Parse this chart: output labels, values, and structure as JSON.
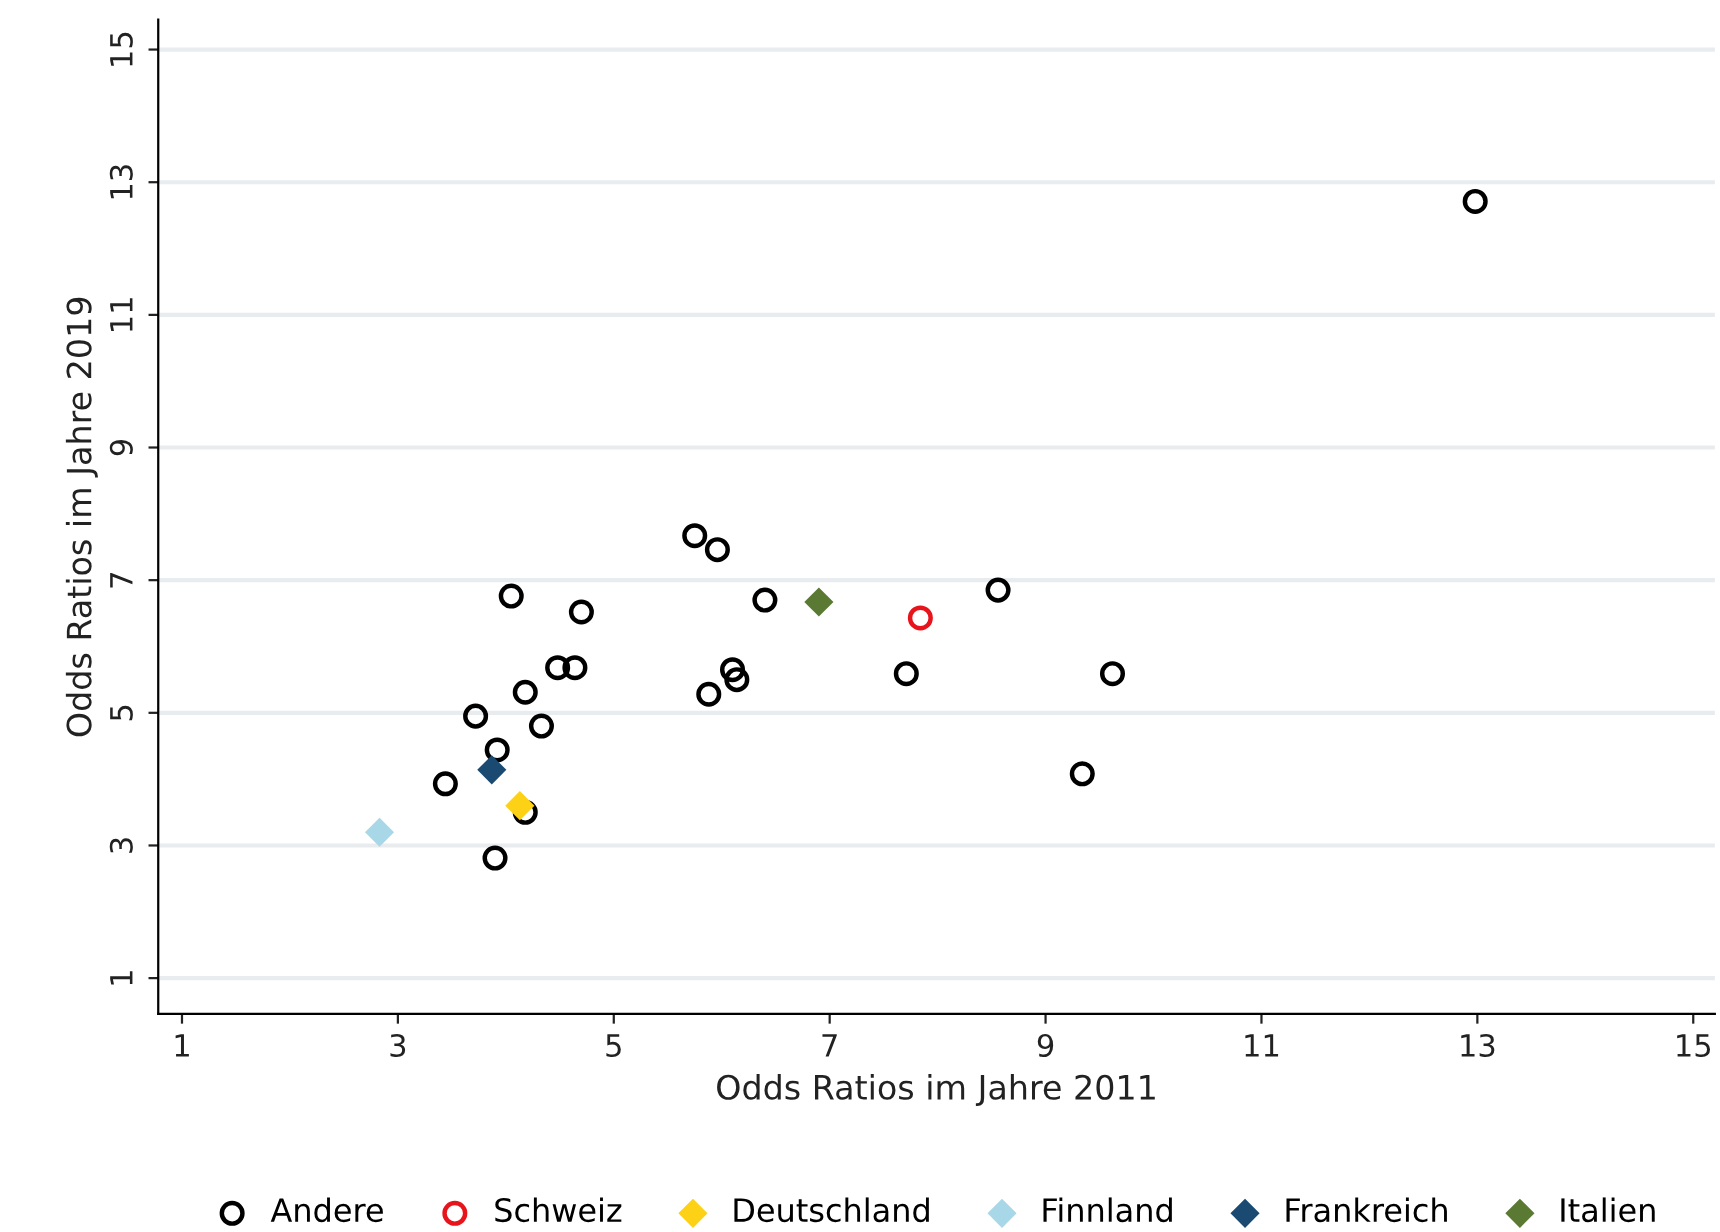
{
  "chart_data": {
    "type": "scatter",
    "xlabel": "Odds Ratios im Jahre 2011",
    "ylabel": "Odds Ratios im Jahre 2019",
    "xlim": [
      0.78,
      15.2
    ],
    "ylim": [
      0.46,
      15.45
    ],
    "xticks": [
      1,
      3,
      5,
      7,
      9,
      11,
      13,
      15
    ],
    "yticks": [
      1,
      3,
      5,
      7,
      9,
      11,
      13,
      15
    ],
    "grid": "y",
    "legend": "bottom",
    "series": [
      {
        "name": "Andere",
        "color": "#000000",
        "marker": "circle",
        "x": [
          12.98,
          5.75,
          5.96,
          4.05,
          4.7,
          6.4,
          8.56,
          4.48,
          4.64,
          6.1,
          6.14,
          5.88,
          7.71,
          9.62,
          4.18,
          3.72,
          4.33,
          3.92,
          3.44,
          4.18,
          3.9,
          9.34
        ],
        "values": [
          12.71,
          7.67,
          7.46,
          6.76,
          6.52,
          6.7,
          6.85,
          5.68,
          5.68,
          5.65,
          5.5,
          5.28,
          5.59,
          5.59,
          5.31,
          4.95,
          4.8,
          4.44,
          3.93,
          3.5,
          2.81,
          4.08
        ]
      },
      {
        "name": "Schweiz",
        "color": "#e8141c",
        "marker": "circle",
        "x": [
          7.84
        ],
        "values": [
          6.43
        ]
      },
      {
        "name": "Deutschland",
        "color": "#fcd116",
        "marker": "diamond",
        "x": [
          4.13
        ],
        "values": [
          3.6
        ]
      },
      {
        "name": "Finnland",
        "color": "#a8d8e8",
        "marker": "diamond",
        "x": [
          2.83
        ],
        "values": [
          3.2
        ]
      },
      {
        "name": "Frankreich",
        "color": "#1a4a72",
        "marker": "diamond",
        "x": [
          3.87
        ],
        "values": [
          4.14
        ]
      },
      {
        "name": "Italien",
        "color": "#5a7a34",
        "marker": "diamond",
        "x": [
          6.9
        ],
        "values": [
          6.67
        ]
      }
    ]
  }
}
